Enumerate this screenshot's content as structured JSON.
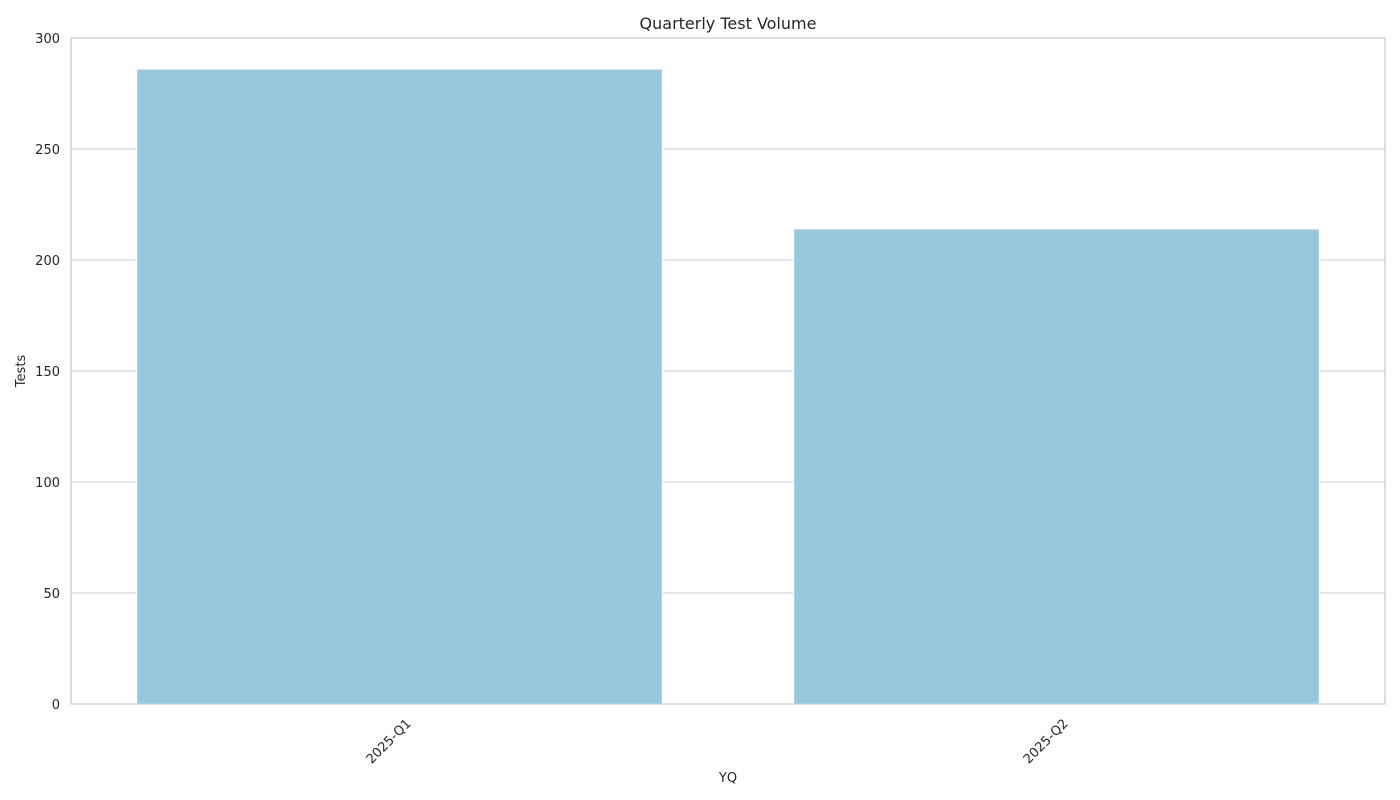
{
  "chart_data": {
    "type": "bar",
    "title": "Quarterly Test Volume",
    "xlabel": "YQ",
    "ylabel": "Tests",
    "categories": [
      "2025-Q1",
      "2025-Q2"
    ],
    "values": [
      286,
      214
    ],
    "ylim": [
      0,
      300
    ],
    "yticks": [
      0,
      50,
      100,
      150,
      200,
      250,
      300
    ],
    "grid": "horizontal",
    "x_tick_rotation_deg": 45,
    "bar_color": "#95c8dd",
    "grid_color": "#cccccc",
    "text_color": "#262626"
  }
}
